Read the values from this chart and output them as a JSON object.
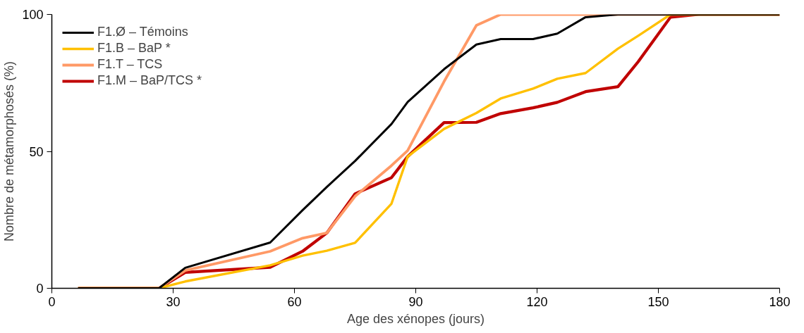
{
  "chart_data": {
    "type": "line",
    "xlabel": "Age des xénopes (jours)",
    "ylabel": "Nombre de métamorphosés (%)",
    "x": [
      6.5,
      26.5,
      33,
      54,
      62,
      68,
      75,
      84,
      88,
      97,
      105,
      111,
      119,
      125,
      132,
      140,
      145,
      153,
      160,
      180
    ],
    "series": [
      {
        "name": "F1.Ø – Témoins",
        "color": "#000000",
        "values": [
          0,
          0,
          7.5,
          16.7,
          28.5,
          37,
          46.5,
          60,
          68,
          80,
          89,
          91,
          91,
          93,
          99,
          100,
          100,
          100,
          100,
          100
        ]
      },
      {
        "name": "F1.B – BaP *",
        "color": "#ffc000",
        "values": [
          0,
          0,
          2.5,
          8.4,
          11.9,
          13.7,
          16.6,
          30.9,
          48.1,
          58.2,
          64,
          69.3,
          72.9,
          76.5,
          78.6,
          87.5,
          92.2,
          100,
          100,
          100
        ]
      },
      {
        "name": "F1.T – TCS",
        "color": "#ff9966",
        "values": [
          0,
          0,
          6.5,
          13.5,
          18.3,
          20.2,
          33.6,
          44.8,
          50.3,
          75.5,
          96,
          100,
          100,
          100,
          100,
          100,
          100,
          100,
          100,
          100
        ]
      },
      {
        "name": "F1.M – BaP/TCS *",
        "color": "#c00000",
        "values": [
          0,
          0,
          5.8,
          7.7,
          13.5,
          20.2,
          34.5,
          40.4,
          48.1,
          60.5,
          60.6,
          63.8,
          65.9,
          67.9,
          71.8,
          73.6,
          82.7,
          99,
          100,
          100
        ]
      }
    ],
    "xlim": [
      0,
      180
    ],
    "xticks": [
      0,
      30,
      60,
      90,
      120,
      150,
      180
    ],
    "ylim": [
      0,
      100
    ],
    "yticks": [
      0,
      50,
      100
    ],
    "grid": false,
    "legend": "top left",
    "marker": "none",
    "line_style": "solid"
  }
}
